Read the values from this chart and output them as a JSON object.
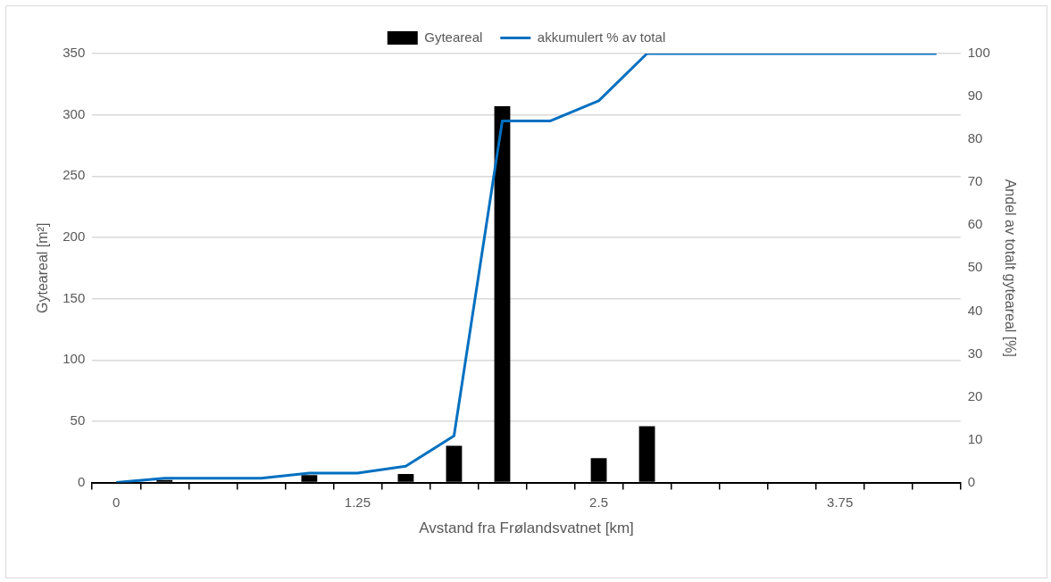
{
  "chart_data": {
    "type": "bar",
    "xlabel": "Avstand fra Frølandsvatnet [km]",
    "ylabel": "Gyteareal [m²]",
    "y2label": "Andel av totalt gyteareal [%]",
    "categories": [
      "0",
      null,
      null,
      null,
      null,
      "1.25",
      null,
      null,
      null,
      null,
      "2.5",
      null,
      null,
      null,
      null,
      "3.75",
      null,
      null
    ],
    "series": [
      {
        "name": "Gyteareal",
        "color": "#000000",
        "values": [
          0,
          2,
          0,
          0,
          6,
          0,
          7,
          30,
          307,
          0,
          20,
          46,
          0,
          0,
          0,
          0,
          0,
          0
        ]
      },
      {
        "name": "akkumulert % av total",
        "type": "line",
        "axis": "y2",
        "color": "#0070c0",
        "values": [
          0,
          1,
          1,
          1,
          2.2,
          2.2,
          3.8,
          10.9,
          84.3,
          84.3,
          89,
          100,
          100,
          100,
          100,
          100,
          100,
          100
        ]
      }
    ],
    "ylim": [
      0,
      350
    ],
    "yticks": [
      0,
      50,
      100,
      150,
      200,
      250,
      300,
      350
    ],
    "y2lim": [
      0,
      100
    ],
    "y2ticks": [
      0,
      10,
      20,
      30,
      40,
      50,
      60,
      70,
      80,
      90,
      100
    ],
    "grid": "y",
    "legend": "top",
    "marker": "none"
  }
}
